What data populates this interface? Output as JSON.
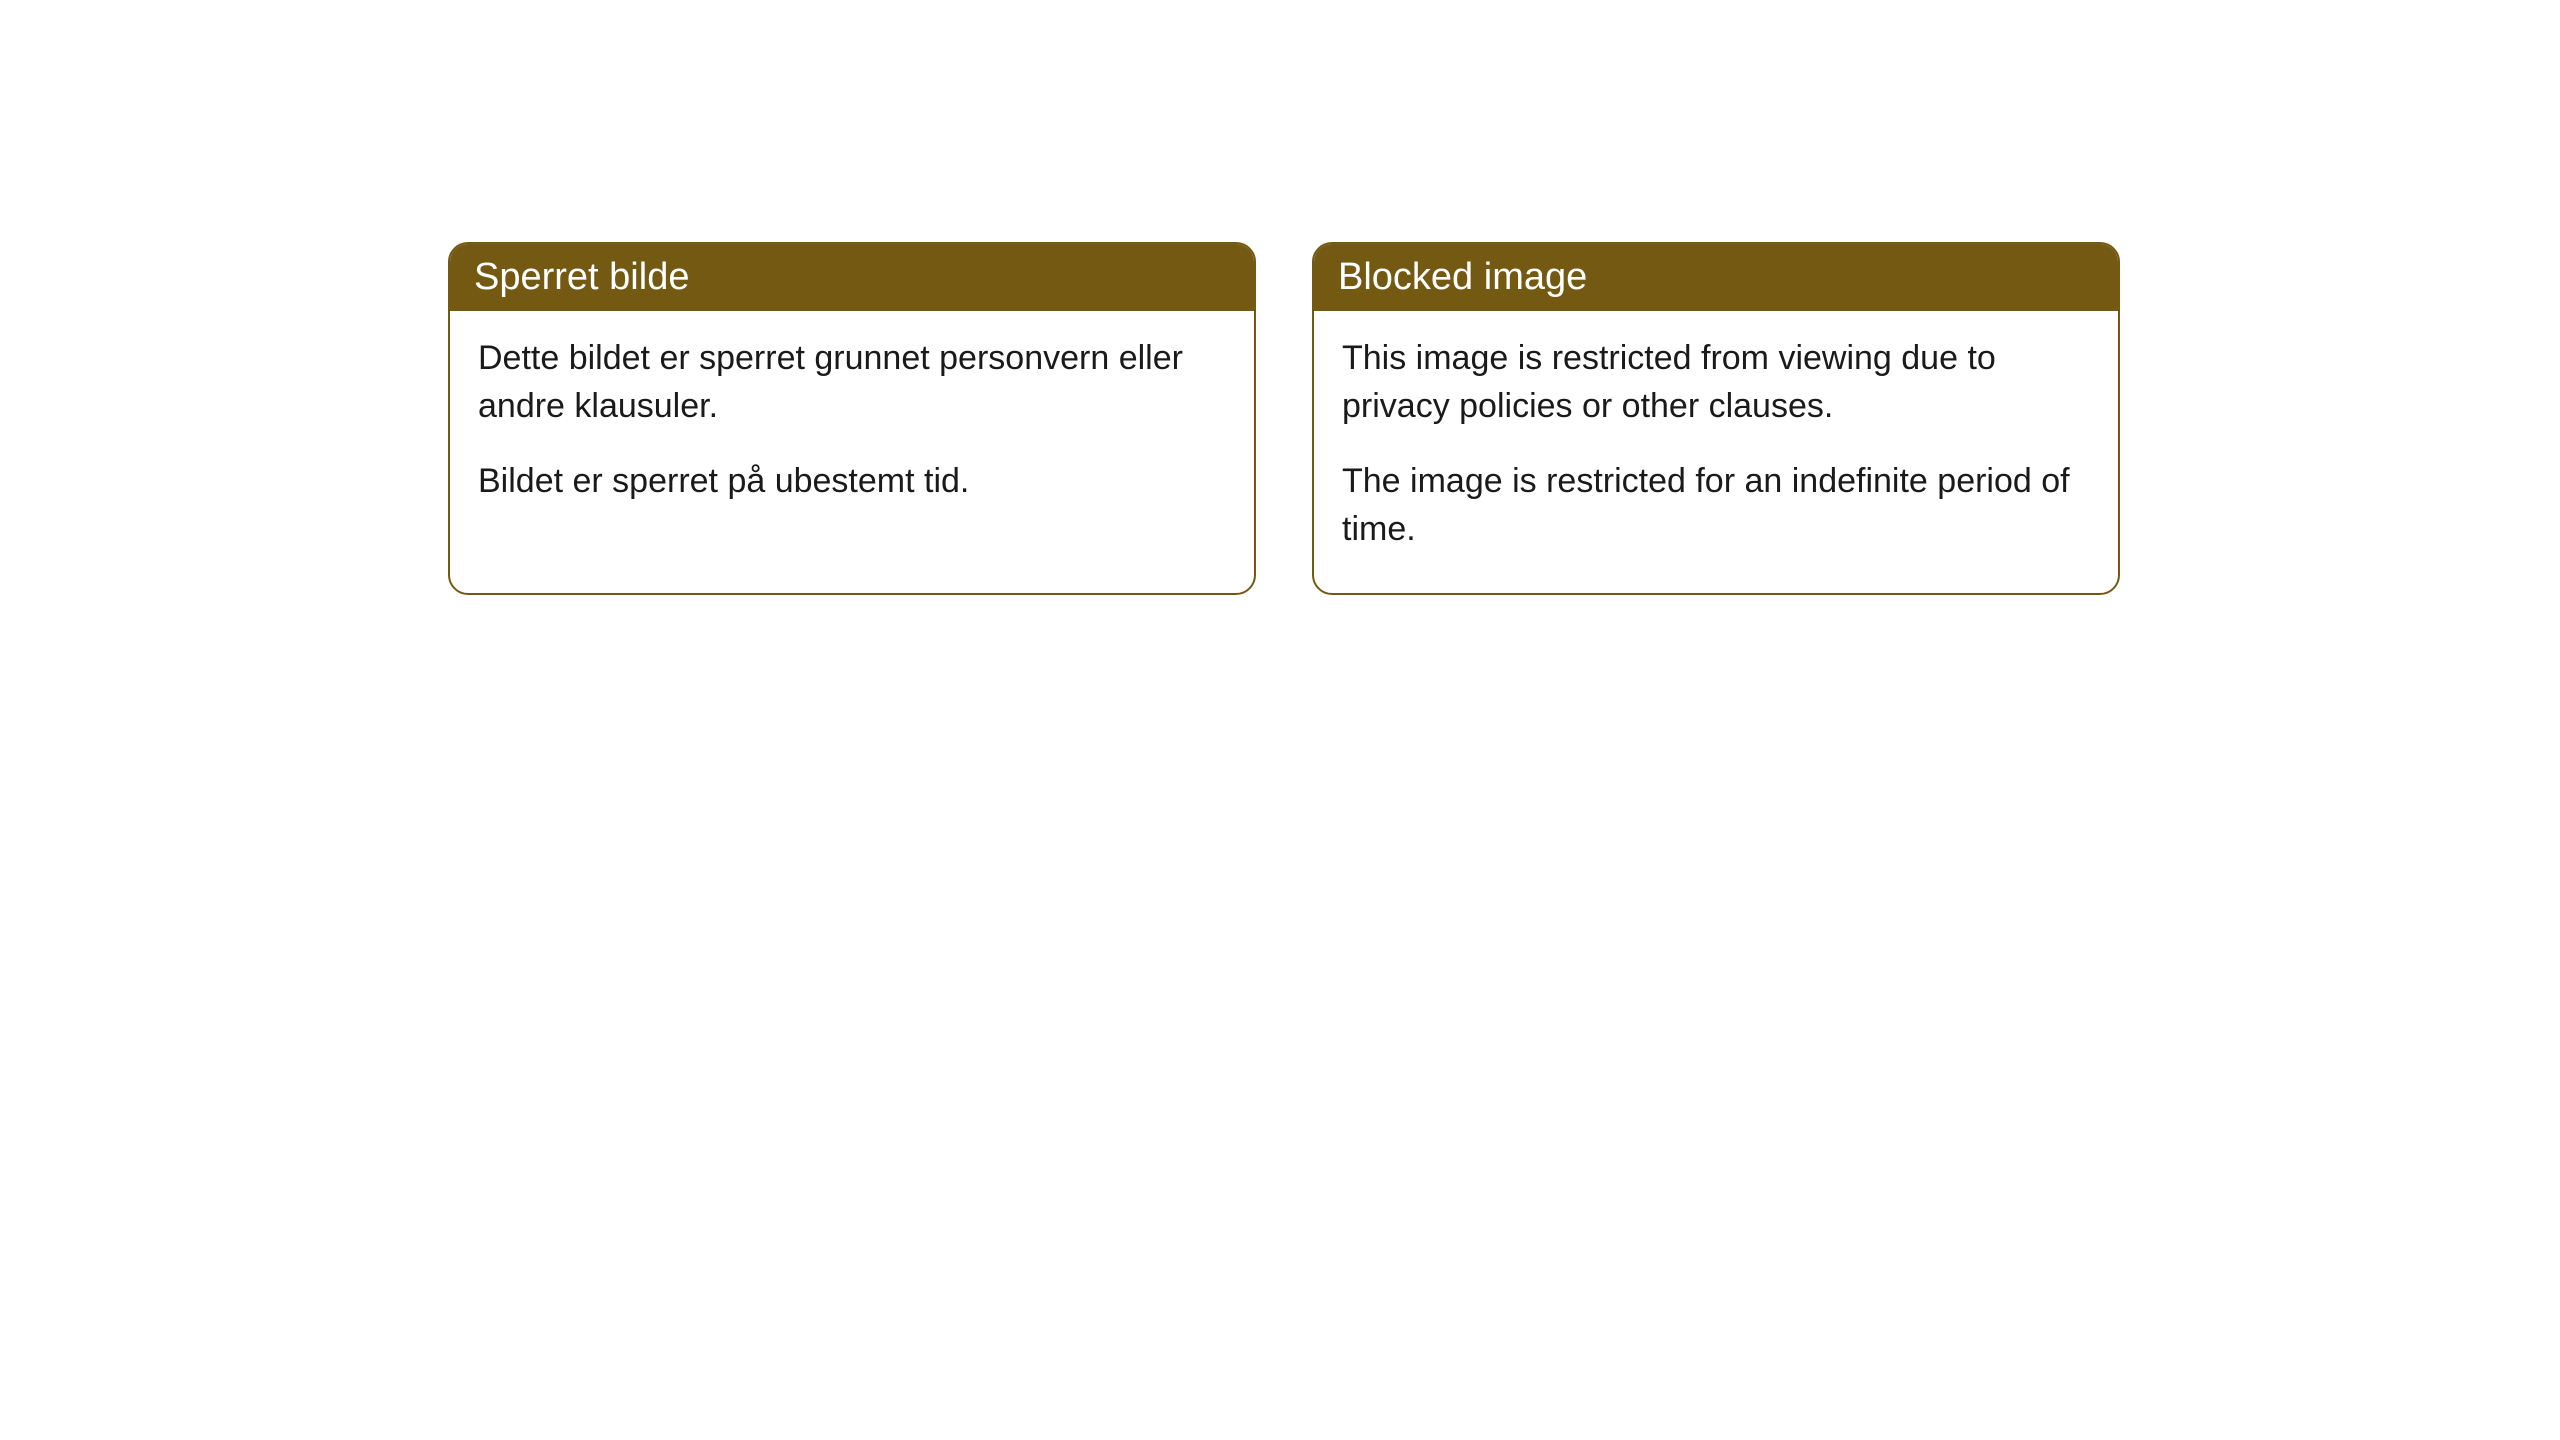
{
  "cards": {
    "left": {
      "title": "Sperret bilde",
      "paragraph1": "Dette bildet er sperret grunnet personvern eller andre klausuler.",
      "paragraph2": "Bildet er sperret på ubestemt tid."
    },
    "right": {
      "title": "Blocked image",
      "paragraph1": "This image is restricted from viewing due to privacy policies or other clauses.",
      "paragraph2": "The image is restricted for an indefinite period of time."
    }
  },
  "styling": {
    "header_bg_color": "#735911",
    "header_text_color": "#ffffff",
    "border_color": "#735911",
    "body_text_color": "#1a1a1a",
    "body_bg_color": "#ffffff",
    "border_radius": 20,
    "header_fontsize": 38,
    "body_fontsize": 34
  }
}
